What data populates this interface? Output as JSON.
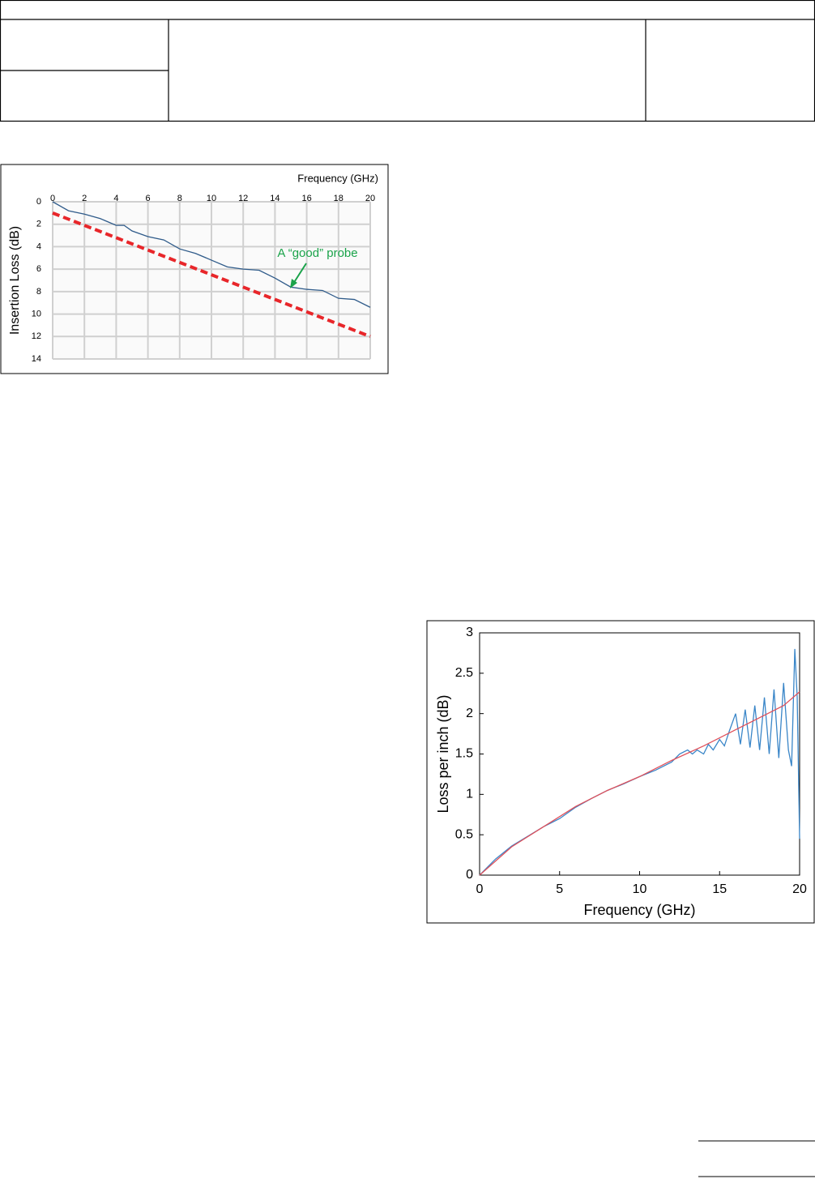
{
  "chart_data": [
    {
      "type": "line",
      "x_label": "Frequency (GHz)",
      "y_label": "Insertion Loss (dB)",
      "annotation": "A “good” probe",
      "xlim": [
        0,
        20
      ],
      "xticks": [
        0,
        2,
        4,
        6,
        8,
        10,
        12,
        14,
        16,
        18,
        20
      ],
      "ylim": [
        0,
        14
      ],
      "yticks": [
        0,
        2,
        4,
        6,
        8,
        10,
        12,
        14
      ],
      "y_inverted": true,
      "x_axis_top": true,
      "grid": true,
      "series": [
        {
          "color": "#2f5b8a",
          "linestyle": "solid",
          "x": [
            0,
            1,
            2,
            3,
            4,
            4.5,
            5,
            6,
            7,
            8,
            9,
            10,
            11,
            12,
            13,
            14,
            15,
            16,
            17,
            18,
            19,
            20
          ],
          "values": [
            0,
            0.8,
            1.1,
            1.5,
            2.1,
            2.1,
            2.6,
            3.1,
            3.4,
            4.2,
            4.6,
            5.2,
            5.8,
            6.0,
            6.1,
            6.8,
            7.6,
            7.8,
            7.9,
            8.6,
            8.7,
            9.4
          ]
        },
        {
          "color": "#e8262a",
          "linestyle": "dashed",
          "x": [
            0,
            20
          ],
          "values": [
            1,
            12
          ]
        }
      ]
    },
    {
      "type": "line",
      "x_label": "Frequency (GHz)",
      "y_label": "Loss per inch (dB)",
      "xlim": [
        0,
        20
      ],
      "xticks": [
        0,
        5,
        10,
        15,
        20
      ],
      "ylim": [
        0,
        3
      ],
      "yticks": [
        0,
        0.5,
        1,
        1.5,
        2,
        2.5,
        3
      ],
      "y_inverted": false,
      "x_axis_top": false,
      "grid": false,
      "series": [
        {
          "color": "#3a86c8",
          "linestyle": "solid",
          "x": [
            0,
            1,
            2,
            3,
            4,
            5,
            6,
            7,
            8,
            9,
            10,
            11,
            12,
            12.5,
            13,
            13.3,
            13.6,
            14,
            14.3,
            14.6,
            15,
            15.3,
            15.6,
            16,
            16.3,
            16.6,
            16.9,
            17.2,
            17.5,
            17.8,
            18.1,
            18.4,
            18.7,
            19,
            19.3,
            19.5,
            19.7,
            19.85,
            20
          ],
          "values": [
            0,
            0.2,
            0.36,
            0.48,
            0.6,
            0.7,
            0.84,
            0.95,
            1.05,
            1.13,
            1.22,
            1.3,
            1.4,
            1.5,
            1.55,
            1.5,
            1.55,
            1.5,
            1.62,
            1.55,
            1.68,
            1.6,
            1.78,
            2.0,
            1.62,
            2.05,
            1.58,
            2.1,
            1.55,
            2.2,
            1.5,
            2.3,
            1.45,
            2.38,
            1.55,
            1.35,
            2.8,
            2.2,
            0.45
          ]
        },
        {
          "color": "#e0505a",
          "linestyle": "solid",
          "x": [
            0,
            2,
            4,
            6,
            8,
            10,
            12,
            14,
            16,
            18,
            19,
            20
          ],
          "values": [
            0,
            0.35,
            0.6,
            0.85,
            1.05,
            1.22,
            1.42,
            1.6,
            1.8,
            2.0,
            2.1,
            2.27
          ]
        }
      ]
    }
  ]
}
